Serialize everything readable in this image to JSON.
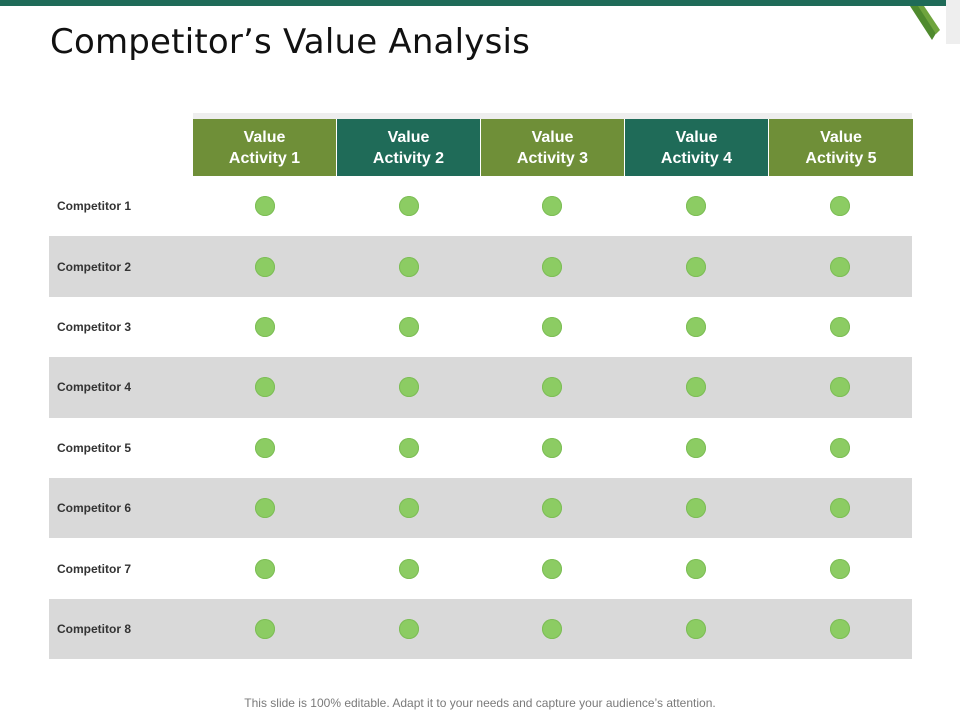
{
  "slide": {
    "title": "Competitor’s Value Analysis",
    "footer": "This slide is 100% editable. Adapt it to your needs and capture your audience’s attention."
  },
  "table": {
    "columns": [
      {
        "label": "Value\nActivity 1",
        "color": "#6f8f38"
      },
      {
        "label": "Value\nActivity 2",
        "color": "#1f6b58"
      },
      {
        "label": "Value\nActivity 3",
        "color": "#6f8f38"
      },
      {
        "label": "Value\nActivity 4",
        "color": "#1f6b58"
      },
      {
        "label": "Value\nActivity 5",
        "color": "#6f8f38"
      }
    ],
    "rows": [
      {
        "label": "Competitor 1"
      },
      {
        "label": "Competitor 2"
      },
      {
        "label": "Competitor 3"
      },
      {
        "label": "Competitor 4"
      },
      {
        "label": "Competitor 5"
      },
      {
        "label": "Competitor 6"
      },
      {
        "label": "Competitor 7"
      },
      {
        "label": "Competitor 8"
      }
    ],
    "marker_color": "#8ccc63",
    "shaded_row_color": "#d9d9d9"
  },
  "theme": {
    "accent_dark": "#1f6b58",
    "accent_light": "#6f8f38"
  }
}
